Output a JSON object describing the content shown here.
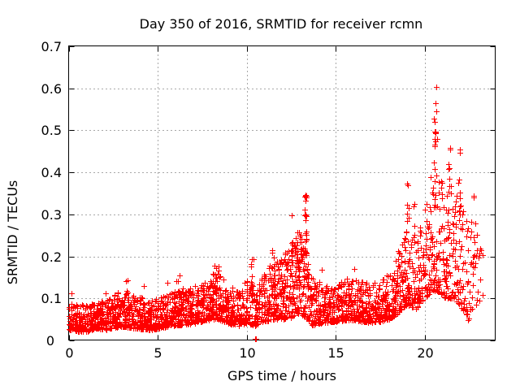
{
  "chart_data": {
    "type": "scatter",
    "title": "Day 350 of 2016, SRMTID for receiver rcmn",
    "xlabel": "GPS time / hours",
    "ylabel": "SRMTID / TECUs",
    "xlim": [
      0,
      24
    ],
    "ylim": [
      0,
      0.7
    ],
    "xticks": [
      {
        "value": 0,
        "label": "0"
      },
      {
        "value": 5,
        "label": "5"
      },
      {
        "value": 10,
        "label": "10"
      },
      {
        "value": 15,
        "label": "15"
      },
      {
        "value": 20,
        "label": "20"
      }
    ],
    "yticks": [
      {
        "value": 0.0,
        "label": "0",
        "dx": -9
      },
      {
        "value": 0.1,
        "label": "0.1"
      },
      {
        "value": 0.2,
        "label": "0.2"
      },
      {
        "value": 0.3,
        "label": "0.3"
      },
      {
        "value": 0.4,
        "label": "0.4"
      },
      {
        "value": 0.5,
        "label": "0.5"
      },
      {
        "value": 0.6,
        "label": "0.6"
      },
      {
        "value": 0.7,
        "label": "0.7"
      }
    ],
    "grid": {
      "style": "dashed",
      "color": "#a8a8a8"
    },
    "axis_color": "#000000",
    "background": "#ffffff",
    "legend": "none",
    "marker": {
      "shape": "plus",
      "size": 7,
      "color": "#ff0000"
    },
    "data_x_extent": [
      0,
      23.3
    ],
    "scatter_generation": {
      "seed": 1350,
      "comment": "band envelope read from plot: [hour, y_low, y_high, points_per_hour]",
      "envelope": [
        [
          0.0,
          0.025,
          0.095,
          130
        ],
        [
          0.5,
          0.022,
          0.085,
          130
        ],
        [
          1.0,
          0.02,
          0.085,
          130
        ],
        [
          1.5,
          0.028,
          0.092,
          130
        ],
        [
          2.0,
          0.025,
          0.1,
          130
        ],
        [
          2.5,
          0.03,
          0.11,
          130
        ],
        [
          3.0,
          0.032,
          0.12,
          130
        ],
        [
          3.5,
          0.03,
          0.11,
          125
        ],
        [
          4.0,
          0.028,
          0.105,
          125
        ],
        [
          4.5,
          0.025,
          0.095,
          120
        ],
        [
          5.0,
          0.028,
          0.1,
          120
        ],
        [
          5.5,
          0.032,
          0.11,
          120
        ],
        [
          6.0,
          0.035,
          0.12,
          125
        ],
        [
          6.5,
          0.038,
          0.125,
          125
        ],
        [
          7.0,
          0.04,
          0.13,
          125
        ],
        [
          7.5,
          0.045,
          0.14,
          130
        ],
        [
          8.0,
          0.05,
          0.16,
          130
        ],
        [
          8.5,
          0.048,
          0.155,
          125
        ],
        [
          9.0,
          0.04,
          0.13,
          120
        ],
        [
          9.5,
          0.035,
          0.12,
          115
        ],
        [
          10.0,
          0.04,
          0.155,
          120
        ],
        [
          10.5,
          0.035,
          0.125,
          110
        ],
        [
          11.0,
          0.045,
          0.16,
          120
        ],
        [
          11.5,
          0.05,
          0.195,
          125
        ],
        [
          12.0,
          0.05,
          0.2,
          130
        ],
        [
          12.5,
          0.055,
          0.235,
          135
        ],
        [
          13.0,
          0.065,
          0.255,
          135
        ],
        [
          13.4,
          0.05,
          0.2,
          120
        ],
        [
          13.7,
          0.035,
          0.15,
          115
        ],
        [
          14.0,
          0.04,
          0.14,
          120
        ],
        [
          14.5,
          0.042,
          0.13,
          120
        ],
        [
          15.0,
          0.045,
          0.13,
          120
        ],
        [
          15.5,
          0.048,
          0.148,
          120
        ],
        [
          16.0,
          0.048,
          0.15,
          120
        ],
        [
          16.5,
          0.045,
          0.14,
          120
        ],
        [
          17.0,
          0.042,
          0.138,
          120
        ],
        [
          17.5,
          0.045,
          0.142,
          120
        ],
        [
          18.0,
          0.05,
          0.16,
          120
        ],
        [
          18.5,
          0.065,
          0.215,
          115
        ],
        [
          19.0,
          0.085,
          0.265,
          110
        ],
        [
          19.5,
          0.075,
          0.235,
          105
        ],
        [
          20.0,
          0.095,
          0.3,
          110
        ],
        [
          20.4,
          0.12,
          0.43,
          110
        ],
        [
          20.8,
          0.115,
          0.39,
          105
        ],
        [
          21.2,
          0.1,
          0.36,
          105
        ],
        [
          21.6,
          0.1,
          0.38,
          105
        ],
        [
          22.0,
          0.08,
          0.33,
          85
        ],
        [
          22.4,
          0.06,
          0.28,
          60
        ],
        [
          22.8,
          0.08,
          0.3,
          45
        ],
        [
          23.1,
          0.095,
          0.25,
          25
        ],
        [
          23.3,
          0.1,
          0.2,
          0
        ]
      ],
      "clusters_comment": "vertical spike columns: [hour_center, half_width, y_low, y_high, n_points]",
      "clusters": [
        [
          3.1,
          0.18,
          0.09,
          0.145,
          6
        ],
        [
          6.15,
          0.1,
          0.1,
          0.155,
          6
        ],
        [
          8.3,
          0.12,
          0.1,
          0.18,
          10
        ],
        [
          10.3,
          0.09,
          0.1,
          0.22,
          8
        ],
        [
          11.5,
          0.1,
          0.12,
          0.23,
          12
        ],
        [
          12.55,
          0.05,
          0.18,
          0.3,
          10
        ],
        [
          12.9,
          0.08,
          0.15,
          0.27,
          12
        ],
        [
          13.3,
          0.06,
          0.15,
          0.345,
          26
        ],
        [
          19.05,
          0.05,
          0.28,
          0.375,
          6
        ],
        [
          19.4,
          0.06,
          0.24,
          0.33,
          5
        ],
        [
          20.62,
          0.09,
          0.3,
          0.575,
          16
        ],
        [
          21.4,
          0.08,
          0.3,
          0.46,
          8
        ],
        [
          21.95,
          0.07,
          0.3,
          0.455,
          8
        ],
        [
          22.8,
          0.06,
          0.24,
          0.35,
          4
        ]
      ],
      "notable_points_comment": "individually readable extreme points [hour, SRMTID]",
      "notable_points": [
        [
          20.65,
          0.603
        ],
        [
          20.6,
          0.565
        ],
        [
          20.68,
          0.545
        ],
        [
          20.55,
          0.52
        ],
        [
          13.28,
          0.347
        ],
        [
          13.33,
          0.34
        ],
        [
          21.42,
          0.458
        ],
        [
          21.97,
          0.455
        ],
        [
          19.07,
          0.37
        ],
        [
          10.47,
          0.004
        ],
        [
          10.53,
          0.004
        ],
        [
          22.4,
          0.07
        ],
        [
          22.44,
          0.048
        ],
        [
          22.47,
          0.052
        ],
        [
          4.2,
          0.13
        ],
        [
          5.55,
          0.137
        ],
        [
          3.3,
          0.143
        ],
        [
          14.2,
          0.168
        ],
        [
          16.05,
          0.17
        ],
        [
          0.15,
          0.112
        ],
        [
          2.05,
          0.112
        ]
      ]
    }
  }
}
